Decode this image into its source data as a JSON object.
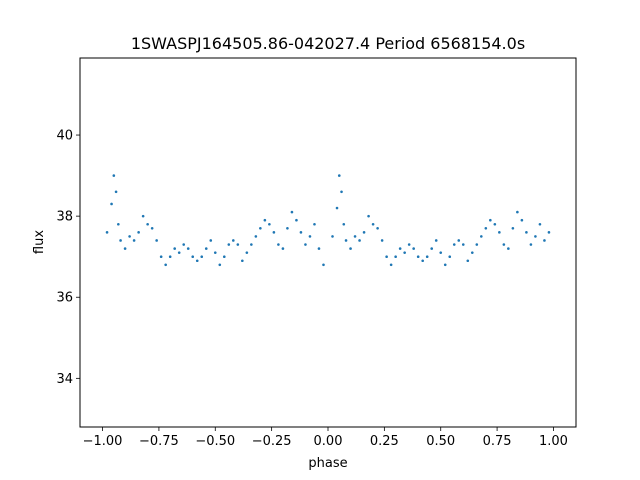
{
  "chart_data": {
    "type": "scatter",
    "title": "1SWASPJ164505.86-042027.4 Period 6568154.0s",
    "xlabel": "phase",
    "ylabel": "flux",
    "xlim": [
      -1.1,
      1.1
    ],
    "ylim": [
      32.8,
      41.9
    ],
    "x_ticks": [
      -1.0,
      -0.75,
      -0.5,
      -0.25,
      0.0,
      0.25,
      0.5,
      0.75,
      1.0
    ],
    "x_tick_labels": [
      "−1.00",
      "−0.75",
      "−0.50",
      "−0.25",
      "0.00",
      "0.25",
      "0.50",
      "0.75",
      "1.00"
    ],
    "y_ticks": [
      34,
      36,
      38,
      40
    ],
    "y_tick_labels": [
      "34",
      "36",
      "38",
      "40"
    ],
    "grid": false,
    "marker_color": "#1f77b4",
    "series": [
      {
        "x": [
          -0.98,
          -0.96,
          -0.95,
          -0.94,
          -0.93,
          -0.92,
          -0.9,
          -0.88,
          -0.86,
          -0.84,
          -0.82,
          -0.8,
          -0.78,
          -0.76,
          -0.74,
          -0.72,
          -0.7,
          -0.68,
          -0.66,
          -0.64,
          -0.62,
          -0.6,
          -0.58,
          -0.56,
          -0.54,
          -0.52,
          -0.5,
          -0.48,
          -0.46,
          -0.44,
          -0.42,
          -0.4,
          -0.38,
          -0.36,
          -0.34,
          -0.32,
          -0.3,
          -0.28,
          -0.26,
          -0.24,
          -0.22,
          -0.2,
          -0.18,
          -0.16,
          -0.14,
          -0.12,
          -0.1,
          -0.08,
          -0.06,
          -0.04,
          -0.02,
          0.02,
          0.04,
          0.05,
          0.06,
          0.07,
          0.08,
          0.1,
          0.12,
          0.14,
          0.16,
          0.18,
          0.2,
          0.22,
          0.24,
          0.26,
          0.28,
          0.3,
          0.32,
          0.34,
          0.36,
          0.38,
          0.4,
          0.42,
          0.44,
          0.46,
          0.48,
          0.5,
          0.52,
          0.54,
          0.56,
          0.58,
          0.6,
          0.62,
          0.64,
          0.66,
          0.68,
          0.7,
          0.72,
          0.74,
          0.76,
          0.78,
          0.8,
          0.82,
          0.84,
          0.86,
          0.88,
          0.9,
          0.92,
          0.94,
          0.96,
          0.98
        ],
        "y": [
          37.6,
          38.3,
          39.0,
          38.6,
          37.8,
          37.4,
          37.2,
          37.5,
          37.4,
          37.6,
          38.0,
          37.8,
          37.7,
          37.4,
          37.0,
          36.8,
          37.0,
          37.2,
          37.1,
          37.3,
          37.2,
          37.0,
          36.9,
          37.0,
          37.2,
          37.4,
          37.1,
          36.8,
          37.0,
          37.3,
          37.4,
          37.3,
          36.9,
          37.1,
          37.3,
          37.5,
          37.7,
          37.9,
          37.8,
          37.6,
          37.3,
          37.2,
          37.7,
          38.1,
          37.9,
          37.6,
          37.3,
          37.5,
          37.8,
          37.2,
          36.8,
          37.5,
          38.2,
          39.0,
          38.6,
          37.8,
          37.4,
          37.2,
          37.5,
          37.4,
          37.6,
          38.0,
          37.8,
          37.7,
          37.4,
          37.0,
          36.8,
          37.0,
          37.2,
          37.1,
          37.3,
          37.2,
          37.0,
          36.9,
          37.0,
          37.2,
          37.4,
          37.1,
          36.8,
          37.0,
          37.3,
          37.4,
          37.3,
          36.9,
          37.1,
          37.3,
          37.5,
          37.7,
          37.9,
          37.8,
          37.6,
          37.3,
          37.2,
          37.7,
          38.1,
          37.9,
          37.6,
          37.3,
          37.5,
          37.8,
          37.4,
          37.6
        ]
      }
    ]
  }
}
